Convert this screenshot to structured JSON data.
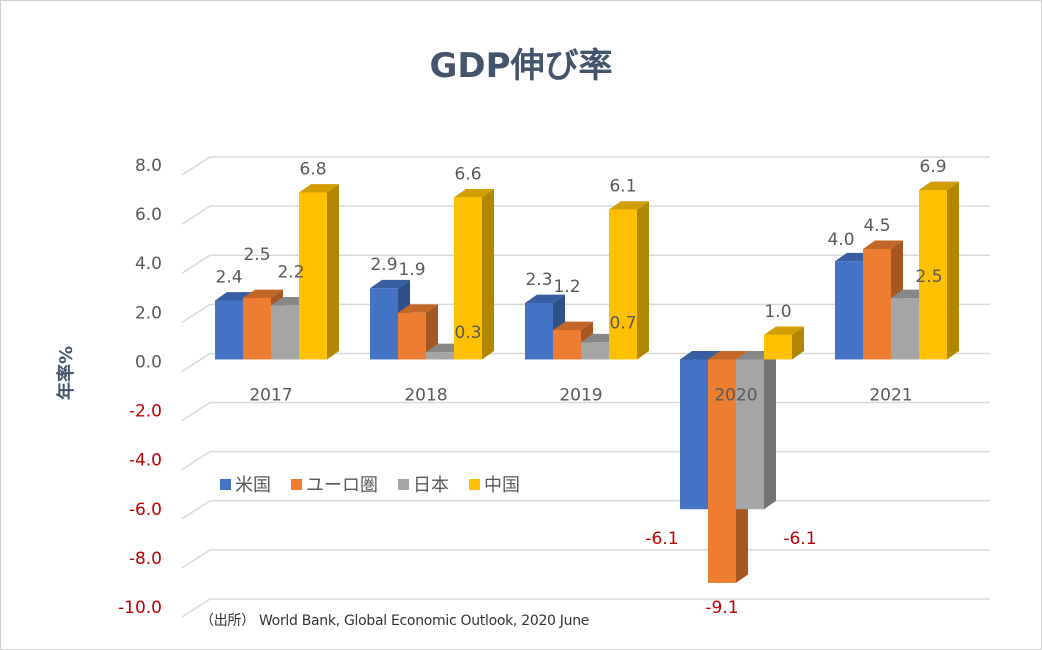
{
  "chart_data": {
    "type": "bar",
    "style": "3d-clustered-column",
    "title": "GDP伸び率",
    "ylabel": "年率%",
    "xlabel": "",
    "ylim": [
      -10,
      8
    ],
    "yticks": [
      8,
      6,
      4,
      2,
      0,
      -2,
      -4,
      -6,
      -8,
      -10
    ],
    "ytick_labels": [
      "8.0",
      "6.0",
      "4.0",
      "2.0",
      "0.0",
      "-2.0",
      "-4.0",
      "-6.0",
      "-8.0",
      "-10.0"
    ],
    "grid": true,
    "legend_position": "inside-lower-left",
    "categories": [
      "2017",
      "2018",
      "2019",
      "2020",
      "2021"
    ],
    "series": [
      {
        "name": "米国",
        "color": "#4472c4",
        "values": [
          2.4,
          2.9,
          2.3,
          -6.1,
          4.0
        ],
        "labels": [
          "2.4",
          "2.9",
          "2.3",
          "-6.1",
          "4.0"
        ]
      },
      {
        "name": "ユーロ圏",
        "color": "#ed7d31",
        "values": [
          2.5,
          1.9,
          1.2,
          -9.1,
          4.5
        ],
        "labels": [
          "2.5",
          "1.9",
          "1.2",
          "-9.1",
          "4.5"
        ]
      },
      {
        "name": "日本",
        "color": "#a5a5a5",
        "values": [
          2.2,
          0.3,
          0.7,
          -6.1,
          2.5
        ],
        "labels": [
          "2.2",
          "0.3",
          "0.7",
          "-6.1",
          "2.5"
        ]
      },
      {
        "name": "中国",
        "color": "#ffc000",
        "values": [
          6.8,
          6.6,
          6.1,
          1.0,
          6.9
        ],
        "labels": [
          "6.8",
          "6.6",
          "6.1",
          "1.0",
          "6.9"
        ]
      }
    ],
    "positive_label_color": "#595959",
    "negative_label_color": "#c00000",
    "source_note": "（出所） World Bank, Global Economic Outlook, 2020 June"
  }
}
